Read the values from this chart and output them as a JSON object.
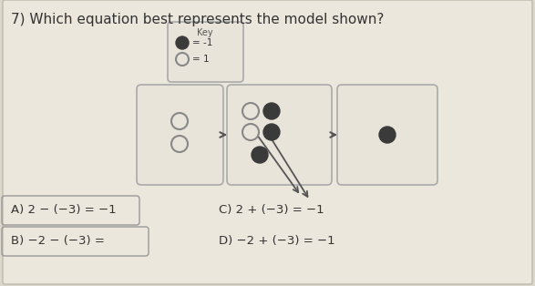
{
  "title": "7) Which equation best represents the model shown?",
  "key_label": "Key",
  "key_filled_label": "= -1",
  "key_open_label": "= 1",
  "bg_color": "#ddd8cc",
  "answer_A": "A) 2 − (−3) = −1",
  "answer_B": "B) −2 − (−3) =",
  "answer_C": "C) 2 + (−3) = −1",
  "answer_D": "D) −2 + (−3) = −1",
  "filled_circle_color": "#3a3a3a",
  "open_circle_edgecolor": "#888888",
  "arrow_color": "#555555",
  "box_edge_color": "#aaaaaa",
  "box_face_color": "#e8e4da",
  "key_box_face": "#e8e4da",
  "text_color": "#333333"
}
